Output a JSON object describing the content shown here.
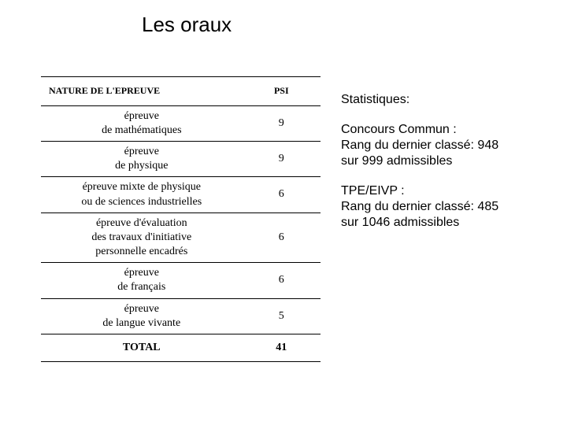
{
  "title": "Les oraux",
  "table": {
    "type": "table",
    "columns": [
      "NATURE DE L'EPREUVE",
      "PSI"
    ],
    "rows": [
      {
        "nature": "épreuve\nde mathématiques",
        "value": "9"
      },
      {
        "nature": "épreuve\nde physique",
        "value": "9"
      },
      {
        "nature": "épreuve mixte de physique\nou de sciences industrielles",
        "value": "6"
      },
      {
        "nature": "épreuve d'évaluation\ndes travaux d'initiative\npersonnelle encadrés",
        "value": "6"
      },
      {
        "nature": "épreuve\nde français",
        "value": "6"
      },
      {
        "nature": "épreuve\nde langue vivante",
        "value": "5"
      }
    ],
    "total": {
      "label": "TOTAL",
      "value": "41"
    },
    "font_family": "serif",
    "border_color": "#000000",
    "background_color": "#ffffff"
  },
  "stats": {
    "heading": "Statistiques:",
    "blocks": [
      {
        "line1": "Concours Commun :",
        "line2": "Rang du dernier classé: 948",
        "line3": "sur 999 admissibles"
      },
      {
        "line1": "TPE/EIVP :",
        "line2": "Rang du dernier classé: 485",
        "line3": "sur 1046 admissibles"
      }
    ]
  },
  "colors": {
    "background": "#ffffff",
    "text": "#000000",
    "table_border": "#000000"
  },
  "typography": {
    "title_fontsize": 26,
    "body_fontsize": 16,
    "table_fontsize": 14,
    "header_fontsize": 12
  }
}
